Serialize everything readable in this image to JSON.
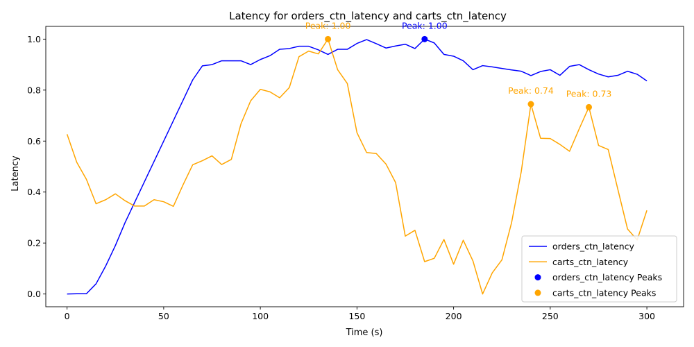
{
  "chart_data": {
    "type": "line",
    "title": "Latency for orders_ctn_latency and carts_ctn_latency",
    "xlabel": "Time (s)",
    "ylabel": "Latency",
    "xlim": [
      -11,
      319
    ],
    "ylim": [
      -0.05,
      1.05
    ],
    "xticks": [
      0,
      50,
      100,
      150,
      200,
      250,
      300
    ],
    "xtick_labels": [
      "0",
      "50",
      "100",
      "150",
      "200",
      "250",
      "300"
    ],
    "yticks": [
      0.0,
      0.2,
      0.4,
      0.6,
      0.8,
      1.0
    ],
    "ytick_labels": [
      "0.0",
      "0.2",
      "0.4",
      "0.6",
      "0.8",
      "1.0"
    ],
    "x": [
      0,
      5,
      10,
      15,
      20,
      25,
      30,
      35,
      40,
      45,
      50,
      55,
      60,
      65,
      70,
      75,
      80,
      85,
      90,
      95,
      100,
      105,
      110,
      115,
      120,
      125,
      130,
      135,
      140,
      145,
      150,
      155,
      160,
      165,
      170,
      175,
      180,
      185,
      190,
      195,
      200,
      205,
      210,
      215,
      220,
      225,
      230,
      235,
      240,
      245,
      250,
      255,
      260,
      265,
      270,
      275,
      280,
      285,
      290,
      295,
      300
    ],
    "series": [
      {
        "name": "orders_ctn_latency",
        "color": "#0000ff",
        "values": [
          0.0,
          0.001,
          0.001,
          0.04,
          0.11,
          0.19,
          0.28,
          0.36,
          0.44,
          0.52,
          0.6,
          0.68,
          0.76,
          0.84,
          0.895,
          0.9,
          0.915,
          0.915,
          0.915,
          0.9,
          0.92,
          0.935,
          0.96,
          0.963,
          0.972,
          0.972,
          0.958,
          0.94,
          0.96,
          0.96,
          0.983,
          0.998,
          0.982,
          0.965,
          0.973,
          0.98,
          0.963,
          1.0,
          0.985,
          0.94,
          0.933,
          0.915,
          0.88,
          0.896,
          0.891,
          0.885,
          0.879,
          0.874,
          0.857,
          0.873,
          0.88,
          0.858,
          0.893,
          0.9,
          0.88,
          0.863,
          0.852,
          0.858,
          0.874,
          0.862,
          0.836
        ]
      },
      {
        "name": "carts_ctn_latency",
        "color": "#ffa500",
        "values": [
          0.627,
          0.517,
          0.45,
          0.354,
          0.37,
          0.393,
          0.366,
          0.345,
          0.345,
          0.37,
          0.362,
          0.344,
          0.428,
          0.507,
          0.523,
          0.542,
          0.508,
          0.528,
          0.668,
          0.758,
          0.803,
          0.793,
          0.77,
          0.81,
          0.931,
          0.953,
          0.942,
          1.0,
          0.88,
          0.826,
          0.633,
          0.555,
          0.551,
          0.51,
          0.437,
          0.227,
          0.25,
          0.127,
          0.14,
          0.214,
          0.117,
          0.211,
          0.13,
          0.0,
          0.083,
          0.134,
          0.28,
          0.48,
          0.745,
          0.611,
          0.61,
          0.587,
          0.56,
          0.648,
          0.733,
          0.583,
          0.567,
          0.41,
          0.255,
          0.212,
          0.328
        ]
      }
    ],
    "peaks": [
      {
        "series": "orders_ctn_latency",
        "x": 185,
        "y": 1.0,
        "label": "Peak: 1.00",
        "color": "#0000ff"
      },
      {
        "series": "carts_ctn_latency",
        "x": 135,
        "y": 1.0,
        "label": "Peak: 1.00",
        "color": "#ffa500"
      },
      {
        "series": "carts_ctn_latency",
        "x": 240,
        "y": 0.745,
        "label": "Peak: 0.74",
        "color": "#ffa500"
      },
      {
        "series": "carts_ctn_latency",
        "x": 270,
        "y": 0.733,
        "label": "Peak: 0.73",
        "color": "#ffa500"
      }
    ],
    "legend": {
      "placement": "lower-right",
      "entries": [
        {
          "label": "orders_ctn_latency",
          "kind": "line",
          "color": "#0000ff"
        },
        {
          "label": "carts_ctn_latency",
          "kind": "line",
          "color": "#ffa500"
        },
        {
          "label": "orders_ctn_latency Peaks",
          "kind": "marker",
          "color": "#0000ff"
        },
        {
          "label": "carts_ctn_latency Peaks",
          "kind": "marker",
          "color": "#ffa500"
        }
      ]
    }
  }
}
